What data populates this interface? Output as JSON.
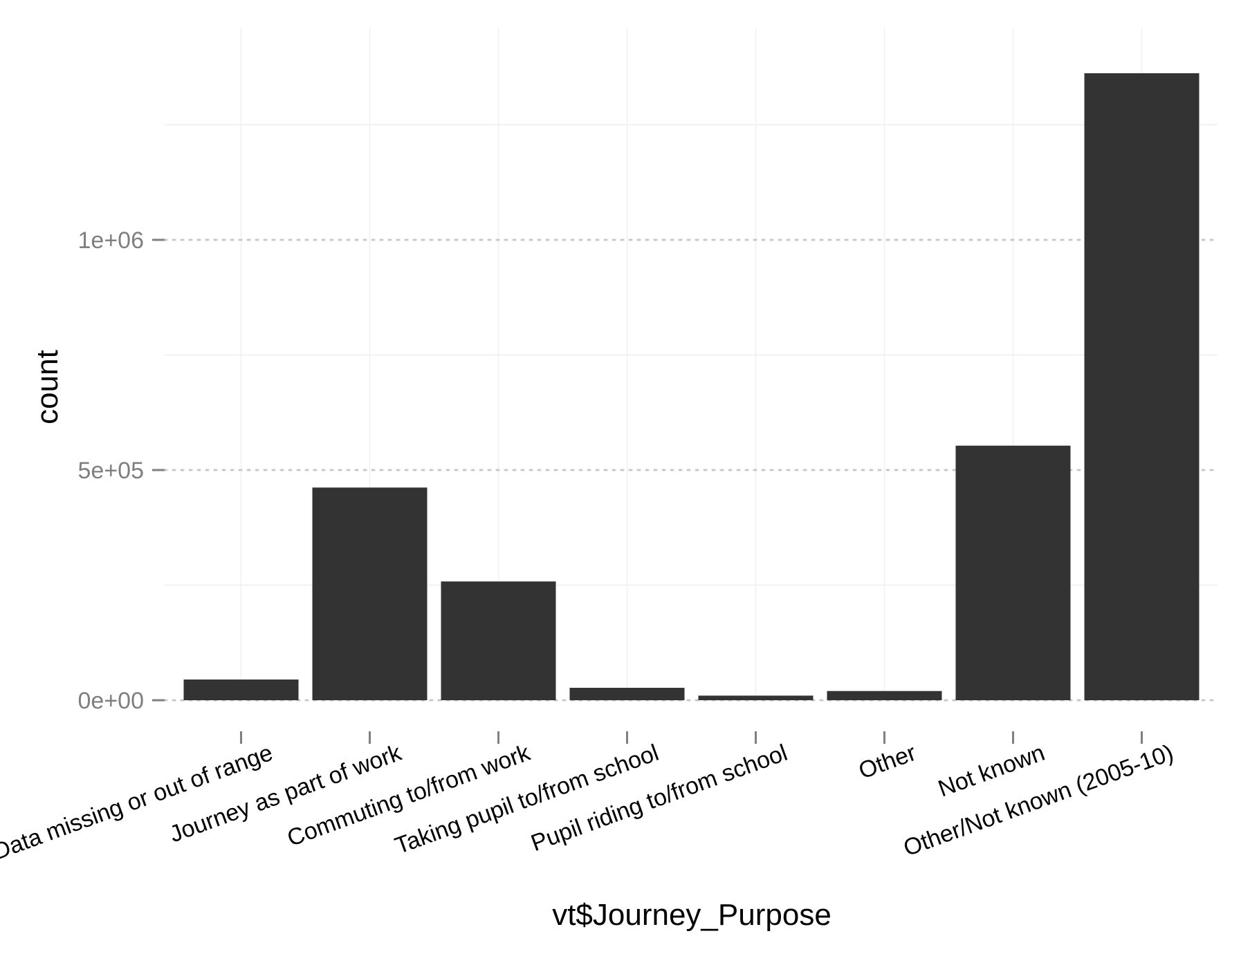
{
  "chart_data": {
    "type": "bar",
    "xlabel": "vt$Journey_Purpose",
    "ylabel": "count",
    "categories": [
      "Data missing or out of range",
      "Journey as part of work",
      "Commuting to/from work",
      "Taking pupil to/from school",
      "Pupil riding to/from school",
      "Other",
      "Not known",
      "Other/Not known (2005-10)"
    ],
    "values": [
      45000,
      462000,
      258000,
      27000,
      10000,
      20000,
      553000,
      1362000
    ],
    "yticks": [
      0,
      500000,
      1000000
    ],
    "ytick_labels": [
      "0e+00",
      "5e+05",
      "1e+06"
    ],
    "ylim": [
      0,
      1400000
    ],
    "grid": true,
    "colors": {
      "bar": "#333333",
      "major_grid": "#c8c8c8",
      "minor_grid": "#f0f0f0",
      "tick": "#7f7f7f"
    }
  }
}
